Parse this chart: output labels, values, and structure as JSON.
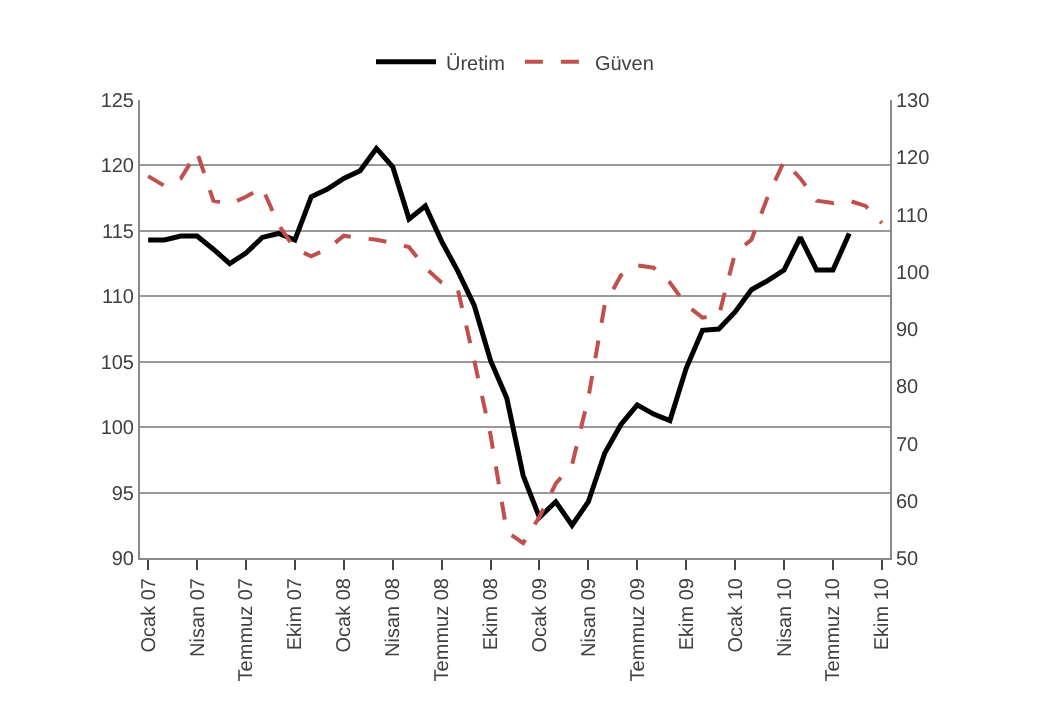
{
  "chart_data": {
    "type": "line",
    "categories": [
      "Ocak 07",
      null,
      null,
      "Nisan 07",
      null,
      null,
      "Temmuz 07",
      null,
      null,
      "Ekim 07",
      null,
      null,
      "Ocak 08",
      null,
      null,
      "Nisan 08",
      null,
      null,
      "Temmuz 08",
      null,
      null,
      "Ekim 08",
      null,
      null,
      "Ocak 09",
      null,
      null,
      "Nisan 09",
      null,
      null,
      "Temmuz 09",
      null,
      null,
      "Ekim 09",
      null,
      null,
      "Ocak 10",
      null,
      null,
      "Nisan 10",
      null,
      null,
      "Temmuz 10",
      null,
      null,
      "Ekim 10"
    ],
    "series": [
      {
        "name": "Üretim",
        "color": "#000000",
        "line_style": "solid",
        "values": [
          114.3,
          114.3,
          114.6,
          114.6,
          113.6,
          112.5,
          113.3,
          114.5,
          114.8,
          114.3,
          117.6,
          118.2,
          119.0,
          119.6,
          121.3,
          119.9,
          115.9,
          116.9,
          114.2,
          111.9,
          109.3,
          105.1,
          102.2,
          96.3,
          93.1,
          94.3,
          92.5,
          94.3,
          98.0,
          100.2,
          101.7,
          101.0,
          100.5,
          104.5,
          107.4,
          107.5,
          108.8,
          110.5,
          111.2,
          112.0,
          114.5,
          112.0,
          112.0,
          114.8,
          null,
          null
        ]
      },
      {
        "name": "Güven",
        "color": "#c0504d",
        "line_style": "dashed",
        "axis": "y2",
        "values": [
          116.7,
          115.0,
          116.3,
          120.9,
          112.4,
          111.8,
          113.1,
          114.7,
          108.2,
          104.0,
          102.7,
          104.0,
          106.3,
          105.9,
          105.6,
          105.0,
          104.3,
          100.7,
          98.1,
          96.8,
          84.5,
          71.5,
          54.6,
          52.6,
          57.2,
          63.0,
          66.3,
          78.0,
          94.2,
          99.4,
          101.1,
          100.7,
          98.1,
          94.2,
          92.0,
          92.3,
          103.3,
          105.6,
          113.1,
          119.3,
          116.3,
          112.4,
          112.0,
          112.4,
          111.5,
          108.5
        ]
      }
    ],
    "ylim": [
      90,
      125
    ],
    "yticks": [
      90,
      95,
      100,
      105,
      110,
      115,
      120,
      125
    ],
    "y2lim": [
      50,
      130
    ],
    "y2ticks": [
      50,
      60,
      70,
      80,
      90,
      100,
      110,
      120,
      130
    ],
    "grid": "y",
    "legend": "top",
    "marker": "none"
  }
}
